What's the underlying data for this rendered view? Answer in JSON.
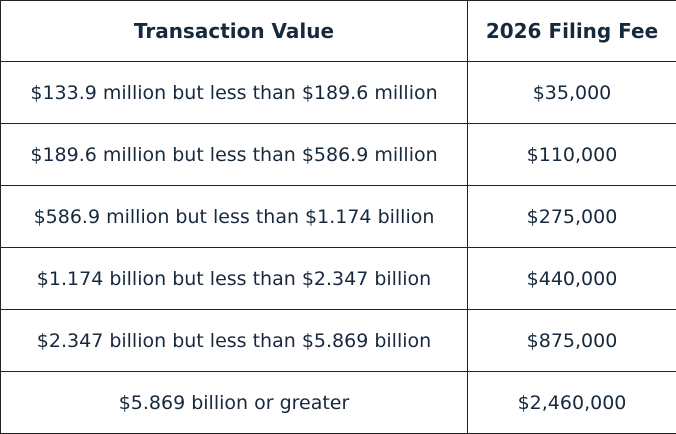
{
  "table": {
    "header": [
      "Transaction Value",
      "2026 Filing Fee"
    ],
    "rows": [
      [
        "$133.9 million but less than $189.6 million",
        "$35,000"
      ],
      [
        "$189.6 million but less than $586.9 million",
        "$110,000"
      ],
      [
        "$586.9 million but less than $1.174 billion",
        "$275,000"
      ],
      [
        "$1.174 billion but less than $2.347 billion",
        "$440,000"
      ],
      [
        "$2.347 billion but less than $5.869 billion",
        "$875,000"
      ],
      [
        "$5.869 billion or greater",
        "$2,460,000"
      ]
    ]
  }
}
